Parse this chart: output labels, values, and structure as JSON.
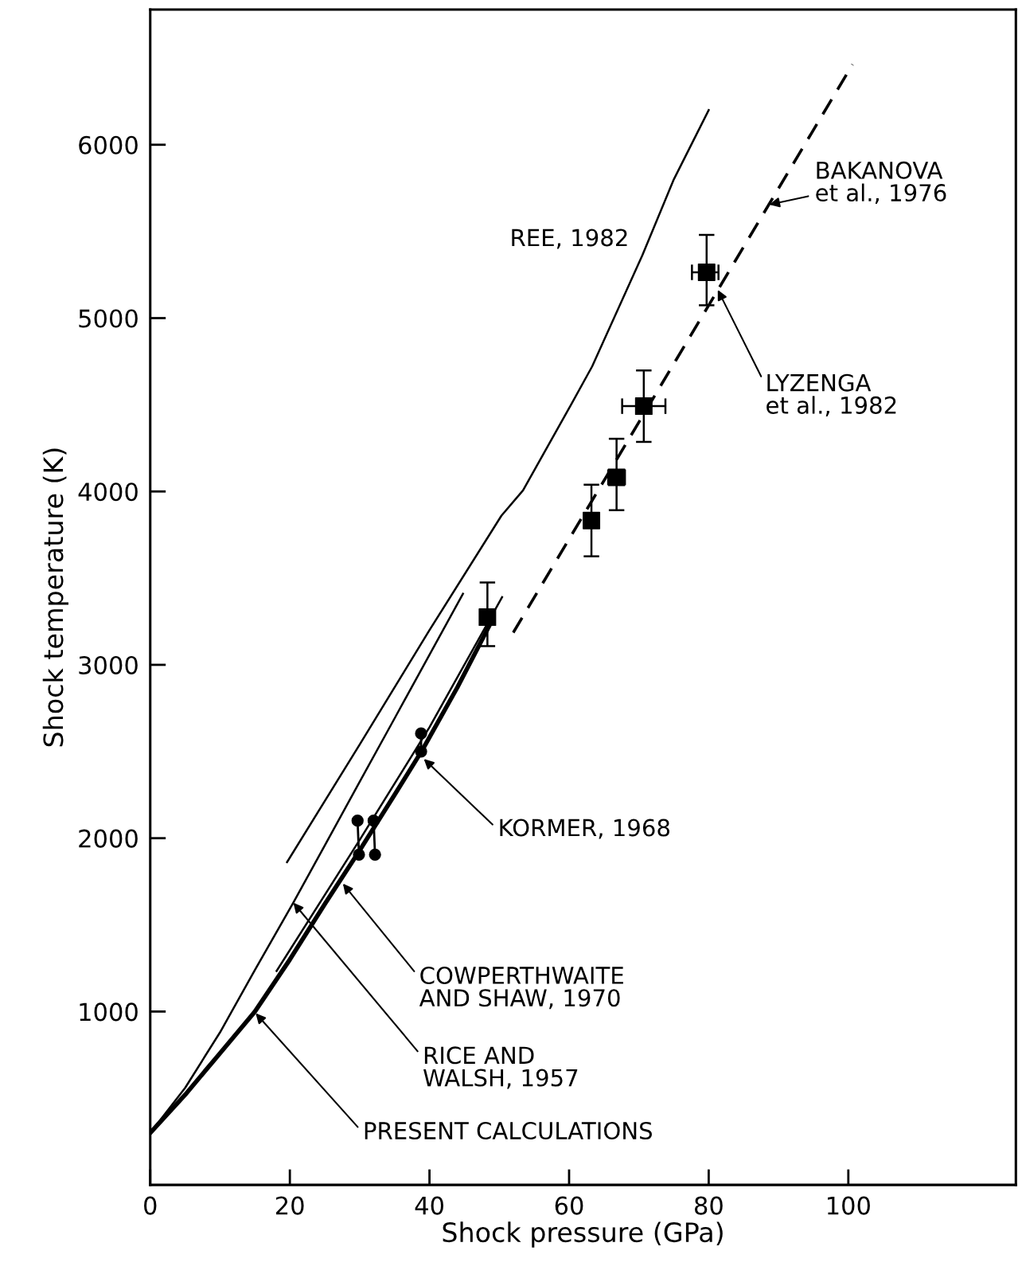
{
  "chart_data": {
    "type": "line",
    "xlabel": "Shock pressure (GPa)",
    "ylabel": "Shock temperature (K)",
    "xlim": [
      0,
      124
    ],
    "ylim": [
      0,
      6780
    ],
    "xticks": [
      0,
      20,
      40,
      60,
      80,
      100
    ],
    "yticks": [
      1000,
      2000,
      3000,
      4000,
      5000,
      6000
    ],
    "grid": false,
    "series": [
      {
        "color": "#000000",
        "line_style": "solid",
        "marker": "none",
        "x": [
          0,
          5,
          10,
          15,
          20,
          25,
          30,
          35,
          39,
          44,
          48.5
        ],
        "values": [
          300,
          520,
          760,
          1000,
          1300,
          1620,
          1930,
          2250,
          2510,
          2870,
          3220
        ]
      },
      {
        "color": "#000000",
        "line_style": "solid",
        "marker": "none",
        "x": [
          0,
          5,
          10,
          15,
          20.5,
          25,
          30,
          35,
          40,
          44.8
        ],
        "values": [
          300,
          560,
          880,
          1240,
          1628,
          1958,
          2325,
          2691,
          3058,
          3410
        ]
      },
      {
        "color": "#000000",
        "line_style": "solid",
        "marker": "none",
        "x": [
          19.6,
          30,
          40,
          50.3,
          53.4,
          60,
          63.3,
          70.5,
          75,
          80
        ],
        "values": [
          1862,
          2540,
          3200,
          3860,
          4006,
          4480,
          4721,
          5363,
          5800,
          6200
        ]
      },
      {
        "color": "#000000",
        "line_style": "solid",
        "marker": "none",
        "x": [
          18.1,
          30,
          40,
          50.4
        ],
        "values": [
          1234,
          1990,
          2640,
          3390
        ]
      },
      {
        "color": "#000000",
        "line_style": "dashed",
        "marker": "none",
        "x": [
          52,
          100.6
        ],
        "values": [
          3186,
          6463
        ]
      },
      {
        "type": "scatter",
        "color": "#000000",
        "marker": "square",
        "x": [
          48.3,
          63.2,
          66.8,
          70.7,
          79.7
        ],
        "values": [
          3275,
          3832,
          4082,
          4492,
          5264
        ],
        "errors": [
          [
            3108,
            3475
          ],
          [
            3626,
            4039
          ],
          [
            3892,
            4304
          ],
          [
            4286,
            4698
          ],
          [
            5074,
            5480
          ]
        ],
        "xerrors": [
          null,
          [
            62.2,
            64.2
          ],
          [
            65.6,
            68.0
          ],
          [
            67.6,
            73.8
          ],
          [
            77.6,
            81.4
          ]
        ]
      },
      {
        "color": "#000000",
        "line_style": "solid",
        "marker": "circle",
        "x": [
          29.7,
          29.9
        ],
        "values": [
          2101,
          1905
        ]
      },
      {
        "color": "#000000",
        "line_style": "solid",
        "marker": "circle",
        "x": [
          32.0,
          32.2
        ],
        "values": [
          2101,
          1905
        ]
      },
      {
        "color": "#000000",
        "line_style": "solid",
        "marker": "circle",
        "x": [
          38.8,
          38.8
        ],
        "values": [
          2604,
          2500
        ]
      }
    ],
    "annotations": [
      {
        "text": "REE, 1982",
        "x": 70.5,
        "y": 5363
      },
      {
        "text": "BAKANOVA\net al., 1976",
        "x": 88.7,
        "y": 5655
      },
      {
        "text": "LYZENGA\net al., 1982",
        "x": 81.3,
        "y": 5163
      },
      {
        "text": "KORMER, 1968",
        "x": 39.2,
        "y": 2457
      },
      {
        "text": "COWPERTHWAITE\nAND SHAW, 1970",
        "x": 27.6,
        "y": 1738
      },
      {
        "text": "RICE AND\nWALSH, 1957",
        "x": 20.5,
        "y": 1628
      },
      {
        "text": "PRESENT CALCULATIONS",
        "x": 15.1,
        "y": 990
      }
    ]
  }
}
